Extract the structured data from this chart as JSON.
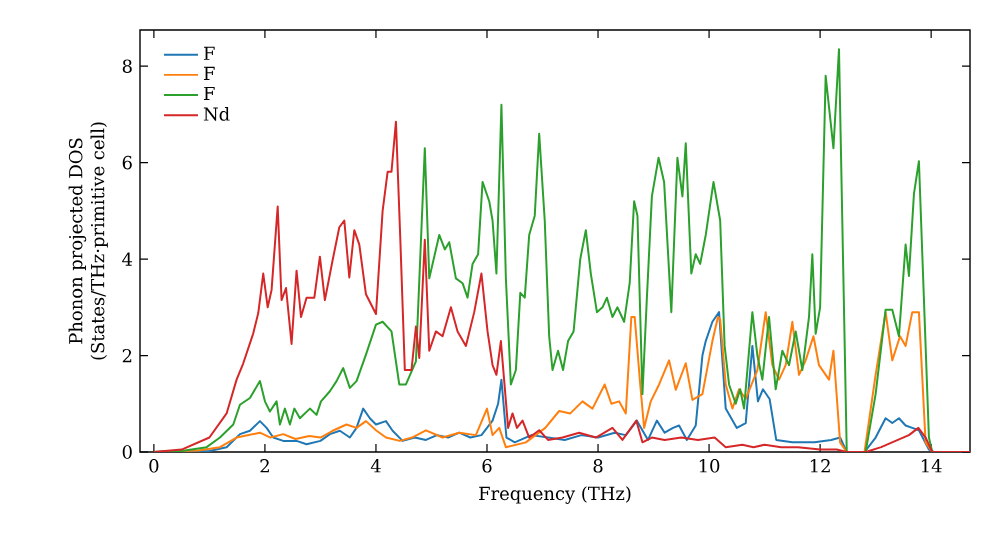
{
  "chart_data": {
    "type": "line",
    "xlabel": "Frequency (THz)",
    "ylabel": "Phonon projected DOS\n(States/THz·primitive cell)",
    "xlim": [
      -0.25,
      14.7
    ],
    "ylim": [
      0,
      8.75
    ],
    "xticks": [
      0,
      2,
      4,
      6,
      8,
      10,
      12,
      14
    ],
    "yticks": [
      0,
      2,
      4,
      6,
      8
    ],
    "grid": false,
    "legend": "top left",
    "marker": "none",
    "line_style": "solid",
    "series": [
      {
        "name": "F",
        "color": "#1f77b4",
        "x": [
          0,
          1.0,
          1.31,
          1.55,
          1.73,
          1.91,
          2.03,
          2.15,
          2.33,
          2.57,
          2.75,
          3.0,
          3.17,
          3.35,
          3.53,
          3.65,
          3.77,
          3.89,
          4.0,
          4.18,
          4.3,
          4.48,
          4.7,
          4.9,
          5.1,
          5.3,
          5.5,
          5.7,
          5.9,
          6.1,
          6.2,
          6.26,
          6.35,
          6.5,
          6.8,
          7.1,
          7.4,
          7.7,
          8.0,
          8.3,
          8.5,
          8.7,
          8.9,
          9.06,
          9.2,
          9.35,
          9.46,
          9.6,
          9.76,
          9.88,
          9.94,
          10.06,
          10.18,
          10.3,
          10.5,
          10.66,
          10.78,
          10.88,
          10.97,
          11.09,
          11.21,
          11.5,
          11.9,
          12.2,
          12.36,
          12.48,
          12.8,
          13.0,
          13.18,
          13.3,
          13.42,
          13.54,
          13.66,
          13.78,
          13.96,
          14.05,
          14.7
        ],
        "values": [
          0,
          0.02,
          0.1,
          0.37,
          0.44,
          0.64,
          0.5,
          0.3,
          0.23,
          0.23,
          0.16,
          0.23,
          0.37,
          0.44,
          0.3,
          0.5,
          0.9,
          0.7,
          0.57,
          0.64,
          0.44,
          0.23,
          0.3,
          0.25,
          0.35,
          0.3,
          0.4,
          0.3,
          0.35,
          0.65,
          1.0,
          1.5,
          0.3,
          0.2,
          0.35,
          0.3,
          0.25,
          0.35,
          0.3,
          0.4,
          0.35,
          0.65,
          0.25,
          0.65,
          0.4,
          0.5,
          0.55,
          0.25,
          0.55,
          2.0,
          2.3,
          2.7,
          2.9,
          0.9,
          0.5,
          0.6,
          2.2,
          1.05,
          1.3,
          1.1,
          0.25,
          0.2,
          0.2,
          0.25,
          0.3,
          0,
          0,
          0.3,
          0.7,
          0.6,
          0.7,
          0.55,
          0.5,
          0.45,
          0.05,
          0,
          0
        ]
      },
      {
        "name": "F",
        "color": "#ff7f0e",
        "x": [
          0,
          0.8,
          1.19,
          1.49,
          1.91,
          2.1,
          2.33,
          2.55,
          2.8,
          3.0,
          3.22,
          3.47,
          3.65,
          3.82,
          4.0,
          4.18,
          4.43,
          4.65,
          4.9,
          5.2,
          5.5,
          5.8,
          6.0,
          6.1,
          6.22,
          6.34,
          6.7,
          7.05,
          7.3,
          7.5,
          7.72,
          7.9,
          8.12,
          8.24,
          8.38,
          8.5,
          8.6,
          8.66,
          8.76,
          8.83,
          8.95,
          9.1,
          9.28,
          9.4,
          9.58,
          9.7,
          9.88,
          10.06,
          10.16,
          10.2,
          10.3,
          10.42,
          10.54,
          10.66,
          10.78,
          10.87,
          11.02,
          11.14,
          11.26,
          11.38,
          11.5,
          11.62,
          11.74,
          11.88,
          11.98,
          12.16,
          12.24,
          12.36,
          12.48,
          12.8,
          13.0,
          13.18,
          13.3,
          13.44,
          13.54,
          13.66,
          13.78,
          13.9,
          14.02,
          14.7
        ],
        "values": [
          0,
          0.03,
          0.1,
          0.3,
          0.4,
          0.3,
          0.37,
          0.27,
          0.33,
          0.3,
          0.44,
          0.57,
          0.5,
          0.64,
          0.45,
          0.3,
          0.23,
          0.3,
          0.45,
          0.3,
          0.4,
          0.35,
          0.9,
          0.35,
          0.5,
          0.1,
          0.2,
          0.5,
          0.85,
          0.8,
          1.05,
          0.9,
          1.4,
          1.0,
          1.05,
          0.8,
          2.8,
          2.8,
          1.4,
          0.5,
          1.05,
          1.4,
          1.9,
          1.29,
          1.84,
          1.08,
          1.2,
          2.3,
          2.8,
          2.75,
          1.4,
          0.9,
          1.3,
          1.1,
          null,
          1.7,
          2.9,
          1.8,
          1.5,
          1.8,
          2.7,
          1.6,
          1.9,
          2.4,
          1.8,
          1.5,
          2.1,
          0.2,
          0,
          0,
          1.6,
          2.9,
          1.9,
          2.4,
          2.2,
          2.9,
          2.9,
          0.2,
          0,
          0
        ]
      },
      {
        "name": "F",
        "color": "#2ca02c",
        "x": [
          0,
          0.5,
          0.95,
          1.19,
          1.43,
          1.55,
          1.73,
          1.91,
          2.0,
          2.09,
          2.21,
          2.27,
          2.36,
          2.45,
          2.53,
          2.63,
          2.81,
          2.93,
          3.01,
          3.17,
          3.29,
          3.41,
          3.53,
          3.65,
          3.82,
          4.0,
          4.12,
          4.28,
          4.42,
          4.54,
          4.72,
          4.88,
          4.96,
          5.14,
          5.24,
          5.32,
          5.44,
          5.56,
          5.65,
          5.74,
          5.84,
          5.92,
          6.04,
          6.1,
          6.17,
          6.26,
          6.34,
          6.43,
          6.52,
          6.6,
          6.68,
          6.76,
          6.86,
          6.94,
          7.04,
          7.12,
          7.18,
          7.28,
          7.37,
          7.46,
          7.56,
          7.68,
          7.78,
          7.87,
          7.98,
          8.08,
          8.16,
          8.26,
          8.35,
          8.47,
          8.57,
          8.65,
          8.71,
          8.8,
          8.88,
          8.97,
          9.09,
          9.19,
          9.32,
          9.43,
          9.52,
          9.58,
          9.68,
          9.76,
          9.84,
          9.94,
          10.08,
          10.2,
          10.28,
          10.36,
          10.48,
          10.56,
          10.63,
          10.78,
          10.87,
          10.96,
          11.08,
          11.2,
          11.32,
          11.44,
          11.56,
          11.68,
          11.8,
          11.86,
          11.92,
          12.0,
          12.1,
          12.24,
          12.34,
          12.48,
          12.82,
          13.0,
          13.18,
          13.3,
          13.42,
          13.54,
          13.6,
          13.69,
          13.78,
          13.96,
          14.02,
          14.7
        ],
        "values": [
          0,
          0.02,
          0.1,
          0.3,
          0.57,
          0.98,
          1.12,
          1.47,
          1.05,
          0.84,
          1.05,
          0.57,
          0.9,
          0.57,
          0.9,
          0.7,
          0.9,
          0.77,
          1.05,
          1.26,
          1.47,
          1.74,
          1.33,
          1.47,
          2.02,
          2.64,
          2.7,
          2.5,
          1.4,
          1.4,
          1.88,
          6.3,
          3.6,
          4.5,
          4.2,
          4.35,
          3.6,
          3.5,
          3.2,
          3.9,
          4.1,
          5.6,
          5.2,
          4.8,
          3.7,
          7.2,
          3.6,
          1.4,
          1.7,
          3.3,
          3.2,
          4.5,
          4.9,
          6.6,
          4.8,
          2.4,
          1.7,
          2.1,
          1.7,
          2.3,
          2.5,
          4.0,
          4.6,
          3.7,
          2.9,
          3.0,
          3.2,
          2.8,
          3.0,
          2.7,
          3.5,
          5.2,
          4.9,
          1.2,
          3.2,
          5.3,
          6.1,
          5.6,
          2.9,
          6.1,
          5.3,
          6.4,
          3.7,
          4.1,
          3.9,
          4.5,
          5.6,
          4.8,
          2.2,
          1.4,
          1.0,
          1.3,
          0.9,
          2.9,
          2.0,
          1.5,
          2.8,
          1.3,
          2.1,
          1.8,
          2.5,
          1.7,
          2.8,
          4.1,
          2.45,
          3.0,
          7.8,
          6.3,
          8.35,
          0,
          0,
          1.2,
          2.95,
          2.95,
          2.4,
          4.3,
          3.65,
          5.35,
          6.03,
          0.3,
          0,
          0
        ]
      },
      {
        "name": "Nd",
        "color": "#d62728",
        "x": [
          0,
          0.5,
          1.0,
          1.31,
          1.49,
          1.61,
          1.79,
          1.88,
          1.97,
          2.05,
          2.12,
          2.23,
          2.3,
          2.38,
          2.48,
          2.57,
          2.65,
          2.75,
          2.89,
          2.99,
          3.08,
          3.22,
          3.34,
          3.43,
          3.52,
          3.61,
          3.7,
          3.82,
          4.0,
          4.12,
          4.21,
          4.28,
          4.36,
          4.44,
          4.52,
          4.64,
          4.72,
          4.78,
          4.88,
          4.96,
          5.08,
          5.2,
          5.35,
          5.47,
          5.62,
          5.77,
          5.9,
          6.01,
          6.1,
          6.17,
          6.25,
          6.33,
          6.38,
          6.46,
          6.54,
          6.64,
          6.76,
          6.94,
          7.1,
          7.36,
          7.66,
          7.96,
          8.26,
          8.44,
          8.69,
          8.8,
          8.97,
          9.2,
          9.5,
          9.8,
          10.1,
          10.3,
          10.6,
          10.8,
          11.0,
          11.3,
          11.6,
          12.0,
          12.3,
          12.48,
          12.82,
          13.1,
          13.4,
          13.6,
          13.77,
          13.9,
          14.02,
          14.7
        ],
        "values": [
          0,
          0.05,
          0.3,
          0.8,
          1.5,
          1.84,
          2.46,
          2.88,
          3.7,
          3.0,
          3.36,
          5.09,
          3.15,
          3.4,
          2.24,
          3.76,
          2.8,
          3.2,
          3.2,
          4.05,
          3.15,
          3.98,
          4.66,
          4.8,
          3.62,
          4.6,
          4.3,
          3.27,
          2.86,
          5.0,
          5.81,
          5.81,
          6.85,
          4.37,
          1.7,
          1.7,
          2.6,
          1.95,
          4.4,
          2.1,
          2.5,
          2.4,
          3.0,
          2.5,
          2.2,
          2.9,
          3.7,
          2.5,
          1.8,
          1.6,
          2.3,
          1.2,
          0.5,
          0.8,
          0.5,
          0.65,
          0.3,
          0.45,
          0.25,
          0.3,
          0.4,
          0.3,
          0.5,
          0.25,
          0.65,
          0.2,
          0.3,
          0.25,
          0.3,
          0.25,
          0.3,
          0.1,
          0.15,
          0.1,
          0.15,
          0.1,
          0.1,
          0.05,
          0.05,
          0,
          0,
          0.1,
          0.25,
          0.35,
          0.5,
          0.3,
          0,
          0
        ]
      }
    ]
  }
}
